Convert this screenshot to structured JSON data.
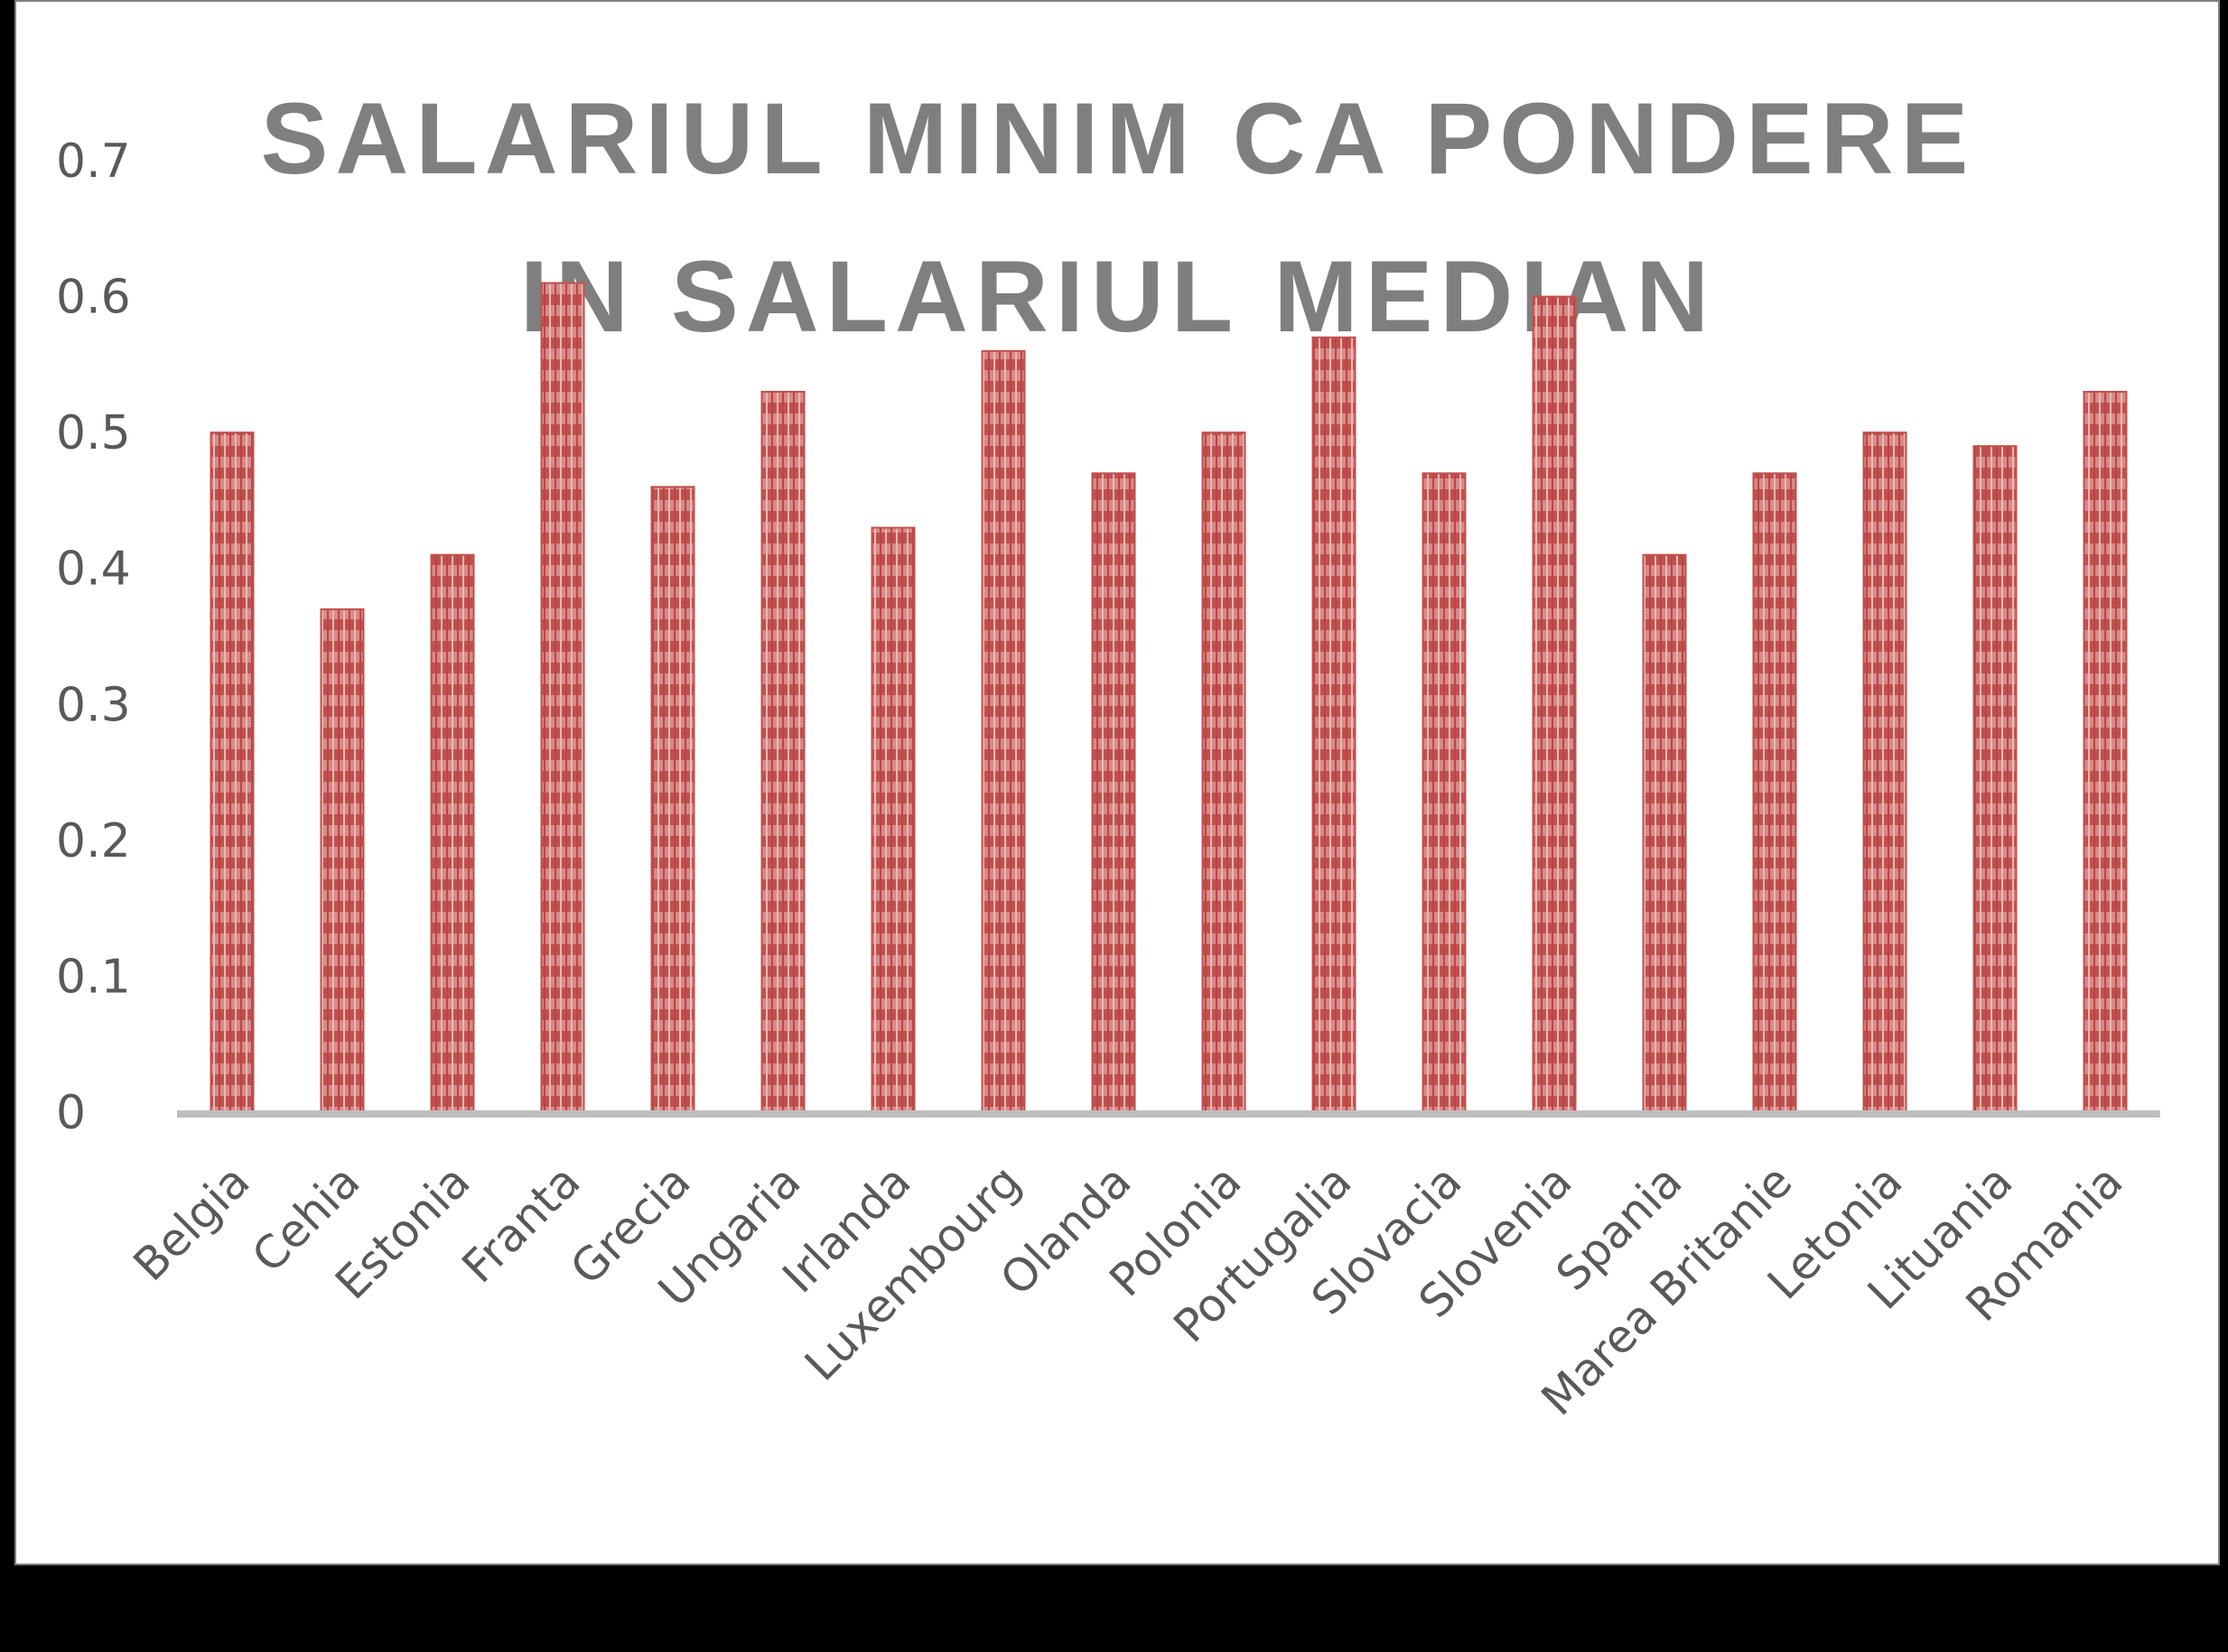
{
  "chart_data": {
    "type": "bar",
    "title_lines": [
      "SALARIUL MINIM CA PONDERE",
      "IN SALARIUL MEDIAN"
    ],
    "categories": [
      "Belgia",
      "Cehia",
      "Estonia",
      "Franta",
      "Grecia",
      "Ungaria",
      "Irlanda",
      "Luxembourg",
      "Olanda",
      "Polonia",
      "Portugalia",
      "Slovacia",
      "Slovenia",
      "Spania",
      "Marea Britanie",
      "Letonia",
      "Lituania",
      "Romania"
    ],
    "values": [
      0.5,
      0.37,
      0.41,
      0.61,
      0.46,
      0.53,
      0.43,
      0.56,
      0.47,
      0.5,
      0.57,
      0.47,
      0.6,
      0.41,
      0.47,
      0.5,
      0.49,
      0.53
    ],
    "ylim": [
      0,
      0.7
    ],
    "yticks": [
      "0",
      "0.1",
      "0.2",
      "0.3",
      "0.4",
      "0.5",
      "0.6",
      "0.7"
    ],
    "grid": false,
    "legend": "none",
    "bar_color": "#c0504d",
    "bar_pattern_color": "#e6b0ae",
    "axis_color": "#bfbfbf"
  }
}
